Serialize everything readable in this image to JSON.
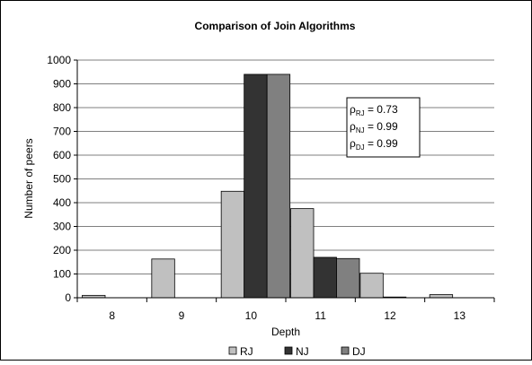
{
  "chart_data": {
    "type": "bar",
    "title": "Comparison of Join Algorithms",
    "xlabel": "Depth",
    "ylabel": "Number of peers",
    "categories": [
      "8",
      "9",
      "10",
      "11",
      "12",
      "13"
    ],
    "ylim": [
      0,
      1000
    ],
    "yticks": [
      0,
      100,
      200,
      300,
      400,
      500,
      600,
      700,
      800,
      900,
      1000
    ],
    "grid": true,
    "legend_position": "bottom",
    "series": [
      {
        "name": "RJ",
        "color": "#c0c0c0",
        "values": [
          10,
          163,
          448,
          375,
          103,
          13
        ]
      },
      {
        "name": "NJ",
        "color": "#333333",
        "values": [
          0,
          0,
          940,
          170,
          3,
          0
        ]
      },
      {
        "name": "DJ",
        "color": "#808080",
        "values": [
          0,
          0,
          940,
          165,
          0,
          0
        ]
      }
    ],
    "annotation": [
      {
        "symbol": "ρ",
        "sub": "RJ",
        "text": " = 0.73"
      },
      {
        "symbol": "ρ",
        "sub": "NJ",
        "text": " = 0.99"
      },
      {
        "symbol": "ρ",
        "sub": "DJ",
        "text": " = 0.99"
      }
    ]
  }
}
